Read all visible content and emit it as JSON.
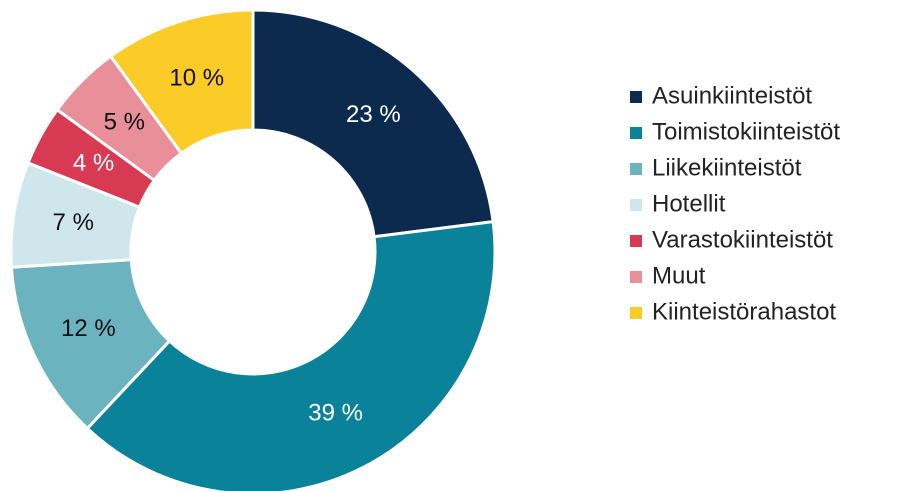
{
  "chart_data": {
    "type": "donut",
    "categories": [
      "Asuinkiinteistöt",
      "Toimistokiinteistöt",
      "Liikekiinteistöt",
      "Hotellit",
      "Varastokiinteistöt",
      "Muut",
      "Kiinteistörahastot"
    ],
    "values": [
      23,
      39,
      12,
      7,
      4,
      5,
      10
    ],
    "value_labels": [
      "23 %",
      "39 %",
      "12 %",
      "7 %",
      "4 %",
      "5 %",
      "10 %"
    ],
    "colors": [
      "#0b2a4e",
      "#0a8299",
      "#6bb3bf",
      "#cfe6ec",
      "#d83a53",
      "#e98f9a",
      "#fbcb27"
    ]
  }
}
